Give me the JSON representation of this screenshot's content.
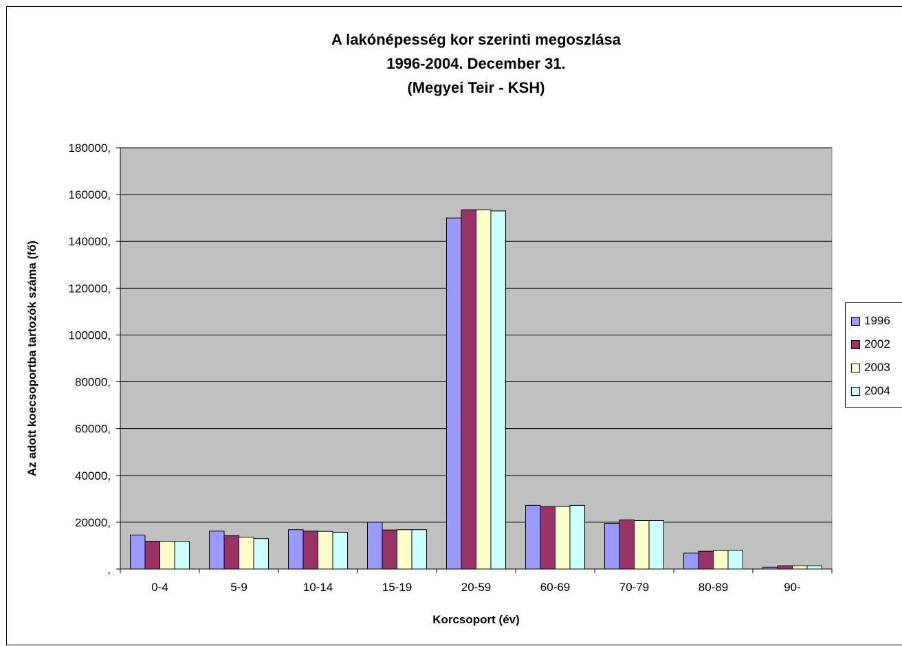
{
  "chart_data": {
    "type": "bar",
    "title": [
      "A lakónépesség kor szerinti megoszlása",
      "1996-2004. December 31.",
      "(Megyei Teir - KSH)"
    ],
    "xlabel": "Korcsoport (év)",
    "ylabel": "Az adott koecsoportba tartozók száma (fő)",
    "ylim": [
      0,
      180000
    ],
    "yticks": [
      0,
      20000,
      40000,
      60000,
      80000,
      100000,
      120000,
      140000,
      160000,
      180000
    ],
    "ytick_labels": [
      ",",
      "20000,",
      "40000,",
      "60000,",
      "80000,",
      "100000,",
      "120000,",
      "140000,",
      "160000,",
      "180000,"
    ],
    "categories": [
      "0-4",
      "5-9",
      "10-14",
      "15-19",
      "20-59",
      "60-69",
      "70-79",
      "80-89",
      "90-"
    ],
    "series": [
      {
        "name": "1996",
        "color": "#9999ff",
        "values": [
          14500,
          16200,
          16800,
          20000,
          150000,
          27200,
          19500,
          6800,
          800
        ]
      },
      {
        "name": "2002",
        "color": "#993366",
        "values": [
          11900,
          14200,
          16200,
          16700,
          153500,
          26700,
          21000,
          7600,
          1400
        ]
      },
      {
        "name": "2003",
        "color": "#ffffcc",
        "values": [
          11800,
          13600,
          16100,
          16800,
          153500,
          26700,
          20700,
          7900,
          1400
        ]
      },
      {
        "name": "2004",
        "color": "#ccffff",
        "values": [
          11800,
          13000,
          15700,
          16800,
          153000,
          27200,
          20700,
          8000,
          1400
        ]
      }
    ],
    "grid": true,
    "plot_background": "#c0c0c0",
    "legend_position": "right"
  }
}
